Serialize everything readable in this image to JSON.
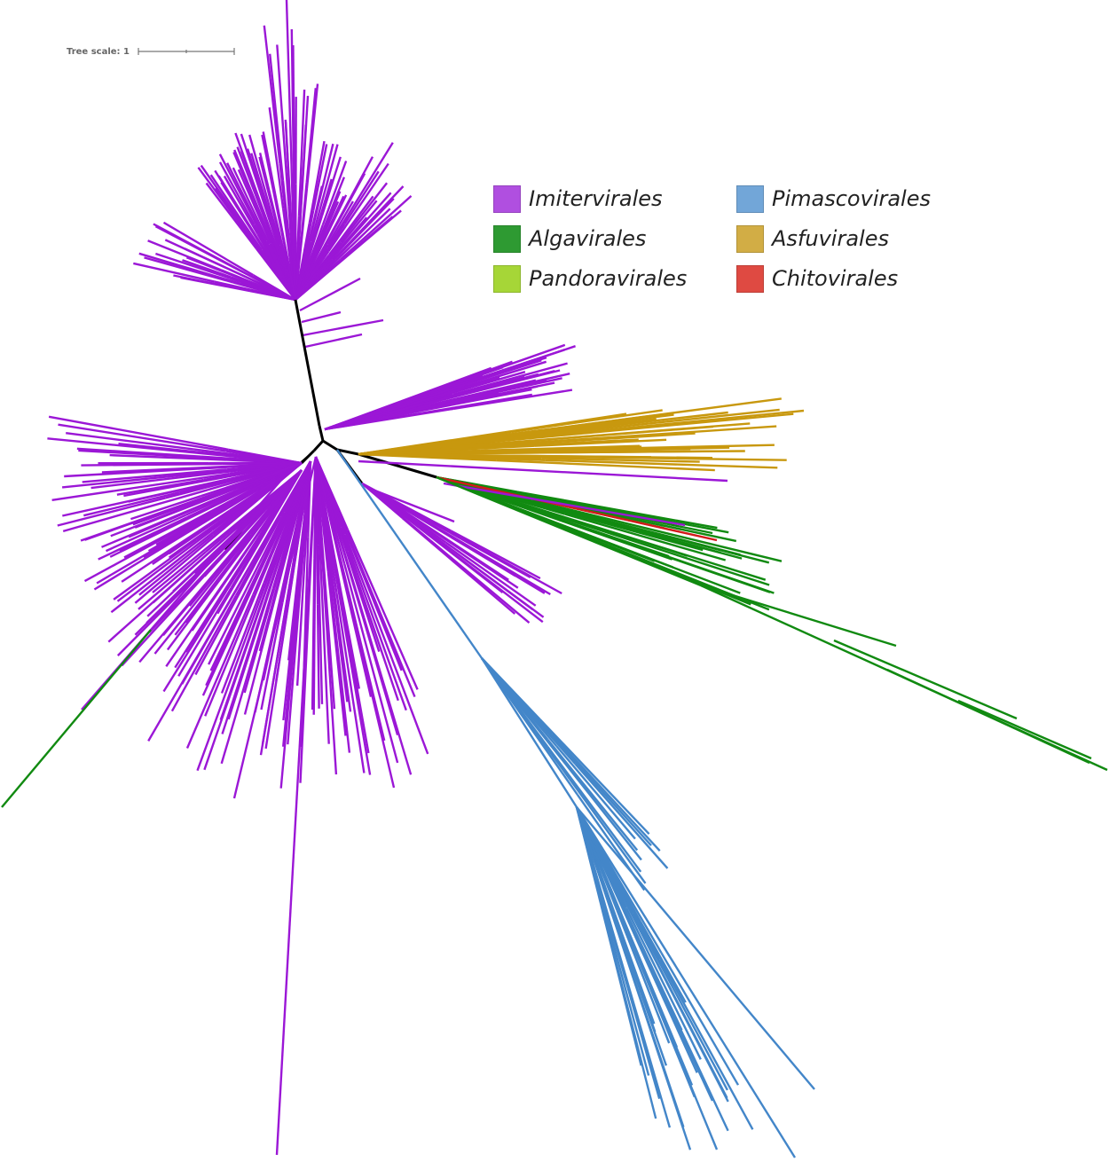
{
  "scale": {
    "label": "Tree scale: 1"
  },
  "legend": {
    "items": [
      {
        "name": "Imitervirales",
        "color": "#b04fe0"
      },
      {
        "name": "Pimascovirales",
        "color": "#72a6d8"
      },
      {
        "name": "Algavirales",
        "color": "#2e9a32"
      },
      {
        "name": "Asfuvirales",
        "color": "#d2ad45"
      },
      {
        "name": "Pandoravirales",
        "color": "#a6d637"
      },
      {
        "name": "Chitovirales",
        "color": "#df4a42"
      }
    ]
  },
  "branch_colors": {
    "imitervirales": "#9b17d6",
    "pimascovirales": "#4386c9",
    "algavirales": "#118a11",
    "asfuvirales": "#c8980e",
    "chitovirales": "#d21a1a",
    "backbone": "#000000"
  }
}
